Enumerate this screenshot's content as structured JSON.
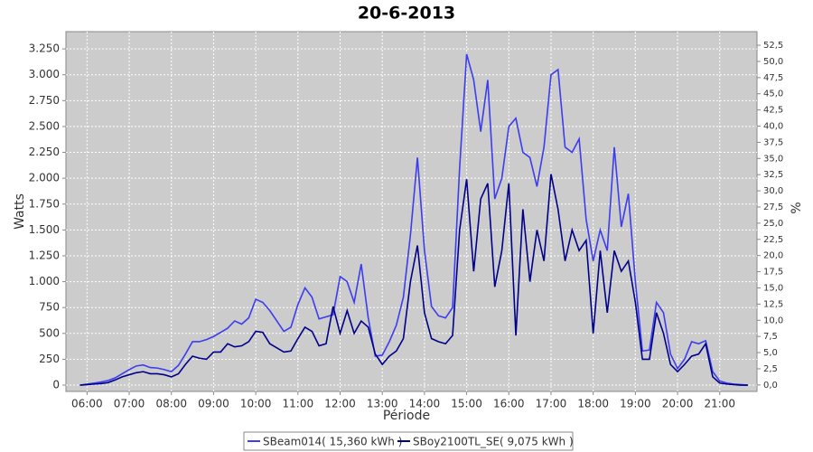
{
  "chart_data": {
    "type": "line",
    "title": "20-6-2013",
    "x_label": "Période",
    "y_label": "Watts",
    "y2_label": "%",
    "x": [
      "05:50",
      "06:00",
      "06:10",
      "06:20",
      "06:30",
      "06:40",
      "06:50",
      "07:00",
      "07:10",
      "07:20",
      "07:30",
      "07:40",
      "07:50",
      "08:00",
      "08:10",
      "08:20",
      "08:30",
      "08:40",
      "08:50",
      "09:00",
      "09:10",
      "09:20",
      "09:30",
      "09:40",
      "09:50",
      "10:00",
      "10:10",
      "10:20",
      "10:30",
      "10:40",
      "10:50",
      "11:00",
      "11:10",
      "11:20",
      "11:30",
      "11:40",
      "11:50",
      "12:00",
      "12:10",
      "12:20",
      "12:30",
      "12:40",
      "12:50",
      "13:00",
      "13:10",
      "13:20",
      "13:30",
      "13:40",
      "13:50",
      "14:00",
      "14:10",
      "14:20",
      "14:30",
      "14:40",
      "14:50",
      "15:00",
      "15:10",
      "15:20",
      "15:30",
      "15:40",
      "15:50",
      "16:00",
      "16:10",
      "16:20",
      "16:30",
      "16:40",
      "16:50",
      "17:00",
      "17:10",
      "17:20",
      "17:30",
      "17:40",
      "17:50",
      "18:00",
      "18:10",
      "18:20",
      "18:30",
      "18:40",
      "18:50",
      "19:00",
      "19:10",
      "19:20",
      "19:30",
      "19:40",
      "19:50",
      "20:00",
      "20:10",
      "20:20",
      "20:30",
      "20:40",
      "20:50",
      "21:00",
      "21:10",
      "21:20",
      "21:30",
      "21:40"
    ],
    "series": [
      {
        "name": "SBeam014( 15,360 kWh )",
        "color": "#3c3cf0",
        "values": [
          0,
          10,
          20,
          30,
          45,
          70,
          110,
          150,
          185,
          195,
          170,
          165,
          150,
          130,
          190,
          300,
          420,
          420,
          440,
          470,
          510,
          550,
          620,
          590,
          650,
          830,
          800,
          720,
          620,
          520,
          560,
          780,
          940,
          850,
          640,
          660,
          680,
          1050,
          1000,
          800,
          1170,
          650,
          280,
          290,
          420,
          580,
          850,
          1450,
          2200,
          1300,
          760,
          670,
          650,
          750,
          2100,
          3200,
          2950,
          2450,
          2950,
          1800,
          2000,
          2500,
          2580,
          2250,
          2200,
          1920,
          2300,
          3000,
          3050,
          2300,
          2250,
          2380,
          1600,
          1200,
          1500,
          1300,
          2300,
          1530,
          1850,
          1000,
          330,
          340,
          800,
          700,
          300,
          160,
          250,
          420,
          400,
          430,
          130,
          40,
          20,
          10,
          5,
          0
        ]
      },
      {
        "name": "SBoy2100TL_SE( 9,075 kWh )",
        "color": "#00008b",
        "values": [
          0,
          5,
          10,
          15,
          25,
          50,
          80,
          100,
          120,
          130,
          110,
          110,
          100,
          80,
          110,
          200,
          280,
          260,
          250,
          320,
          320,
          400,
          370,
          380,
          420,
          520,
          510,
          400,
          360,
          320,
          330,
          450,
          560,
          520,
          380,
          400,
          760,
          500,
          720,
          500,
          620,
          560,
          300,
          200,
          280,
          330,
          450,
          1000,
          1350,
          700,
          450,
          420,
          400,
          480,
          1500,
          1990,
          1100,
          1800,
          1950,
          950,
          1300,
          1950,
          480,
          1700,
          1000,
          1500,
          1200,
          2040,
          1700,
          1200,
          1500,
          1300,
          1400,
          500,
          1300,
          700,
          1300,
          1100,
          1200,
          800,
          250,
          250,
          700,
          500,
          200,
          130,
          200,
          280,
          300,
          400,
          80,
          20,
          10,
          5,
          0,
          0
        ]
      }
    ],
    "xlim": [
      "05:30",
      "21:53"
    ],
    "xticks": [
      "06:00",
      "07:00",
      "08:00",
      "09:00",
      "10:00",
      "11:00",
      "12:00",
      "13:00",
      "14:00",
      "15:00",
      "16:00",
      "17:00",
      "18:00",
      "19:00",
      "20:00",
      "21:00"
    ],
    "ylim": [
      -61,
      3417
    ],
    "yticks": [
      0,
      250,
      500,
      750,
      {
        "value": 1000,
        "label": "1.000"
      },
      {
        "value": 1250,
        "label": "1.250"
      },
      {
        "value": 1500,
        "label": "1.500"
      },
      {
        "value": 1750,
        "label": "1.750"
      },
      {
        "value": 2000,
        "label": "2.000"
      },
      {
        "value": 2250,
        "label": "2.250"
      },
      {
        "value": 2500,
        "label": "2.500"
      },
      {
        "value": 2750,
        "label": "2.750"
      },
      {
        "value": 3000,
        "label": "3.000"
      },
      {
        "value": 3250,
        "label": "3.250"
      }
    ],
    "y2lim": [
      -1,
      54.6
    ],
    "y2ticks": [
      {
        "value": 0,
        "label": "0,0"
      },
      {
        "value": 2.5,
        "label": "2,5"
      },
      {
        "value": 5,
        "label": "5,0"
      },
      {
        "value": 7.5,
        "label": "7,5"
      },
      {
        "value": 10,
        "label": "10,0"
      },
      {
        "value": 12.5,
        "label": "12,5"
      },
      {
        "value": 15,
        "label": "15,0"
      },
      {
        "value": 17.5,
        "label": "17,5"
      },
      {
        "value": 20,
        "label": "20,0"
      },
      {
        "value": 22.5,
        "label": "22,5"
      },
      {
        "value": 25,
        "label": "25,0"
      },
      {
        "value": 27.5,
        "label": "27,5"
      },
      {
        "value": 30,
        "label": "30,0"
      },
      {
        "value": 32.5,
        "label": "32,5"
      },
      {
        "value": 35,
        "label": "35,0"
      },
      {
        "value": 37.5,
        "label": "37,5"
      },
      {
        "value": 40,
        "label": "40,0"
      },
      {
        "value": 42.5,
        "label": "42,5"
      },
      {
        "value": 45,
        "label": "45,0"
      },
      {
        "value": 47.5,
        "label": "47,5"
      },
      {
        "value": 50,
        "label": "50,0"
      },
      {
        "value": 52.5,
        "label": "52,5"
      }
    ],
    "grid": true,
    "legend": "bottom"
  }
}
